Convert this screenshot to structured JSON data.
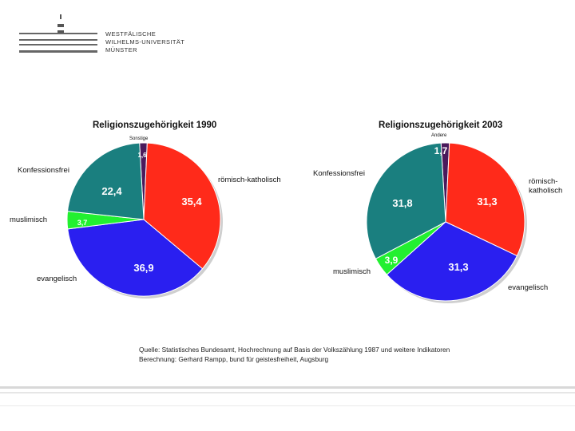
{
  "header": {
    "logo_lines": [
      "Westfälische",
      "Wilhelms-Universität",
      "Münster"
    ]
  },
  "chart_data": [
    {
      "type": "pie",
      "title": "Religionszugehörigkeit 1990",
      "slices": [
        {
          "label": "Sonstige",
          "value": 1.6,
          "value_label": "1,6",
          "color": "#4a1a5c"
        },
        {
          "label": "römisch-katholisch",
          "value": 35.4,
          "value_label": "35,4",
          "color": "#ff2a1a"
        },
        {
          "label": "evangelisch",
          "value": 36.9,
          "value_label": "36,9",
          "color": "#2a1ff0"
        },
        {
          "label": "muslimisch",
          "value": 3.7,
          "value_label": "3,7",
          "color": "#22f030"
        },
        {
          "label": "Konfessionsfrei",
          "value": 22.4,
          "value_label": "22,4",
          "color": "#1a7f7f"
        }
      ]
    },
    {
      "type": "pie",
      "title": "Religionszugehörigkeit 2003",
      "slices": [
        {
          "label": "Andere",
          "value": 1.7,
          "value_label": "1,7",
          "color": "#4a1a5c"
        },
        {
          "label": "römisch-katholisch",
          "value": 31.3,
          "value_label": "31,3",
          "color": "#ff2a1a"
        },
        {
          "label": "evangelisch",
          "value": 31.3,
          "value_label": "31,3",
          "color": "#2a1ff0"
        },
        {
          "label": "muslimisch",
          "value": 3.9,
          "value_label": "3,9",
          "color": "#22f030"
        },
        {
          "label": "Konfessionsfrei",
          "value": 31.8,
          "value_label": "31,8",
          "color": "#1a7f7f"
        }
      ]
    }
  ],
  "source": {
    "line1": "Quelle: Statistisches Bundesamt, Hochrechnung auf Basis der Volkszählung 1987 und weitere Indikatoren",
    "line2": "Berechnung: Gerhard Rampp, bund für geistesfreiheit, Augsburg"
  }
}
